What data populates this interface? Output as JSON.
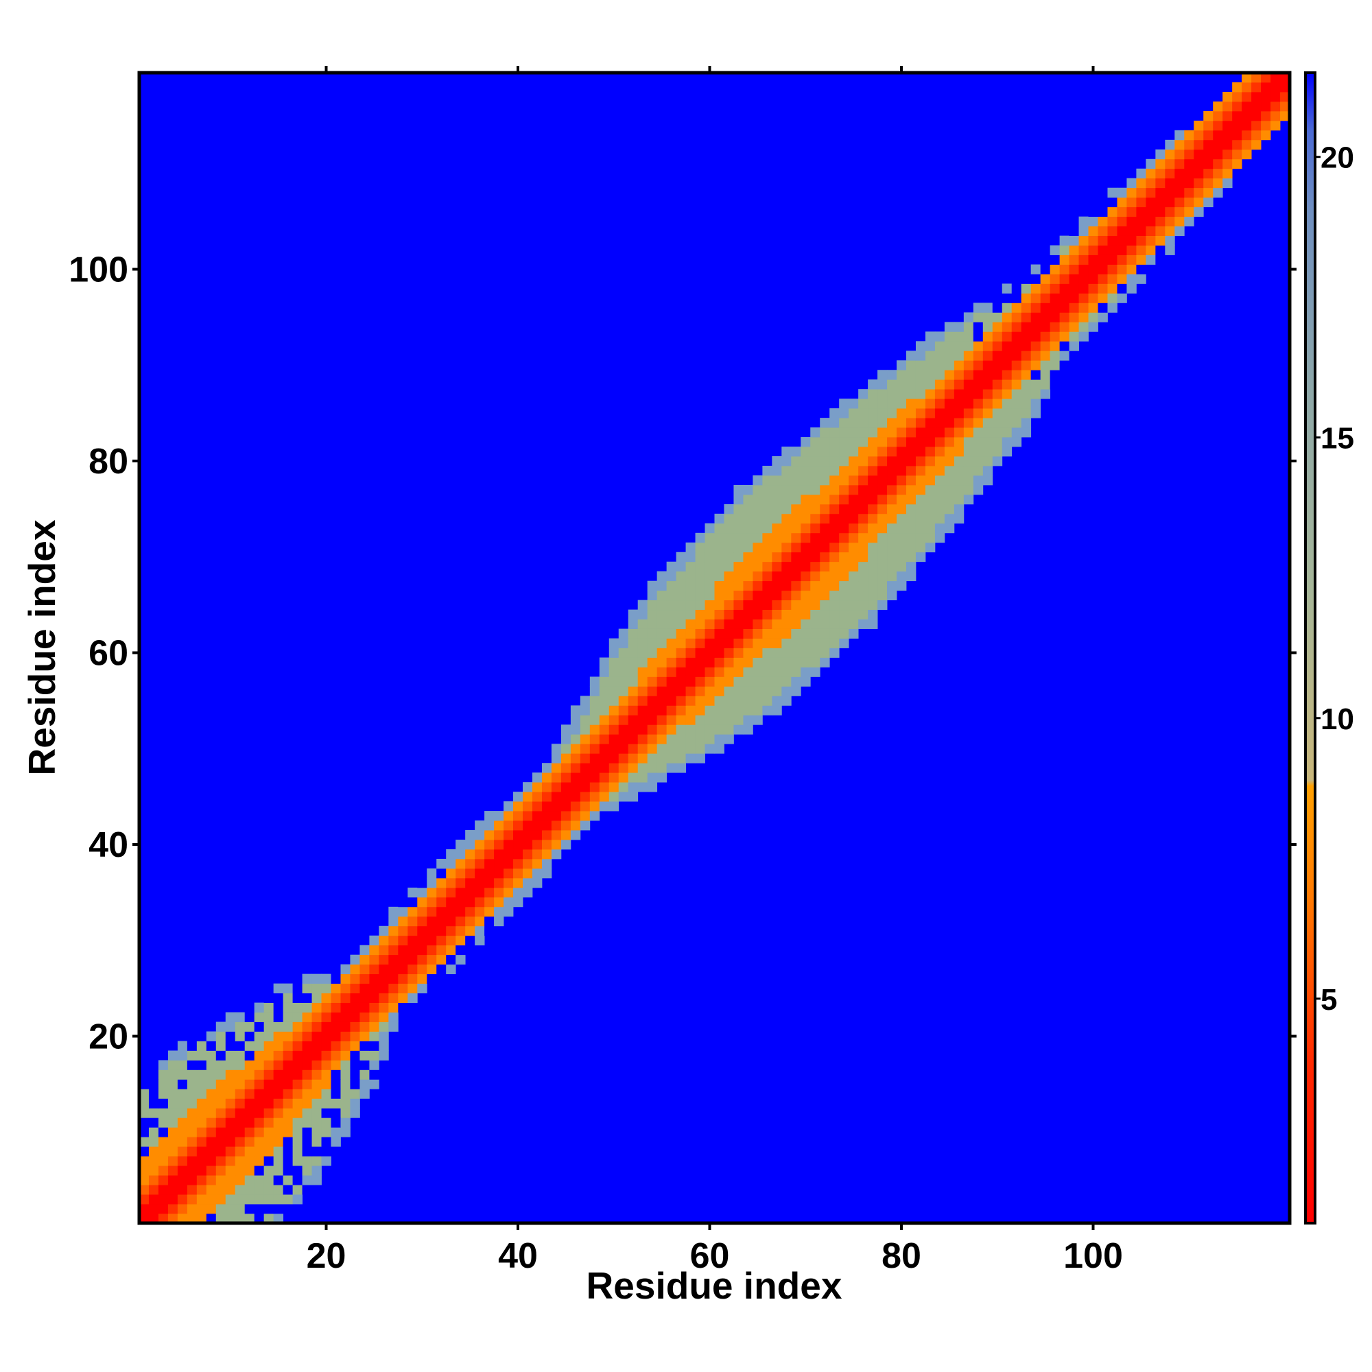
{
  "chart_data": {
    "type": "heatmap",
    "title": "",
    "xlabel": "Residue index",
    "ylabel": "Residue index",
    "n_residues": 120,
    "xlim": [
      1,
      120
    ],
    "ylim": [
      1,
      120
    ],
    "x_ticks": [
      20,
      40,
      60,
      80,
      100
    ],
    "y_ticks": [
      20,
      40,
      60,
      80,
      100
    ],
    "colorbar": {
      "range": [
        1,
        21.5
      ],
      "ticks": [
        5,
        10,
        15,
        20
      ],
      "colors": {
        "near": "#ff0000",
        "mid": "#ff8c00",
        "far": "#9bb48c",
        "edge": "#7a9ec8",
        "background": "#0000ff"
      }
    },
    "distance_profile": [
      {
        "residue": 1,
        "contact_band": 14
      },
      {
        "residue": 10,
        "contact_band": 15
      },
      {
        "residue": 20,
        "contact_band": 10
      },
      {
        "residue": 25,
        "contact_band": 5
      },
      {
        "residue": 30,
        "contact_band": 6
      },
      {
        "residue": 40,
        "contact_band": 6
      },
      {
        "residue": 45,
        "contact_band": 5
      },
      {
        "residue": 50,
        "contact_band": 8
      },
      {
        "residue": 55,
        "contact_band": 11
      },
      {
        "residue": 60,
        "contact_band": 13
      },
      {
        "residue": 70,
        "contact_band": 14
      },
      {
        "residue": 80,
        "contact_band": 12
      },
      {
        "residue": 88,
        "contact_band": 10
      },
      {
        "residue": 95,
        "contact_band": 7
      },
      {
        "residue": 105,
        "contact_band": 6
      },
      {
        "residue": 112,
        "contact_band": 5
      },
      {
        "residue": 120,
        "contact_band": 4
      }
    ]
  }
}
